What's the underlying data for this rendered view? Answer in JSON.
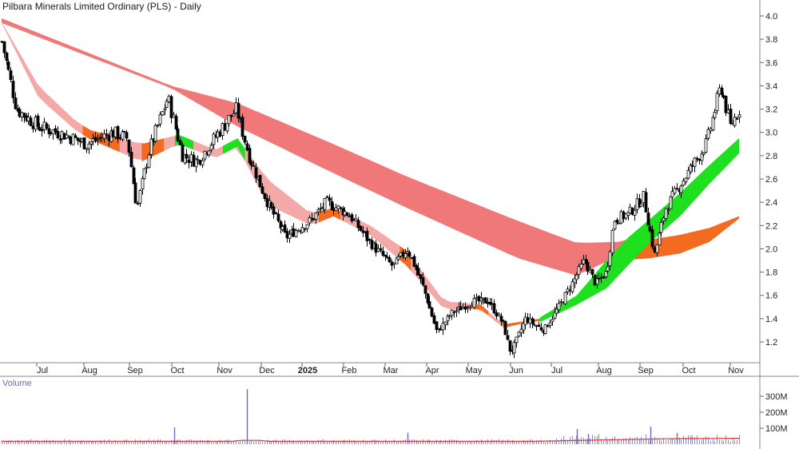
{
  "chart_data": {
    "type": "candlestick",
    "title": "Pilbara Minerals Limited Ordinary (PLS) - Daily",
    "price_axis": {
      "ticks": [
        "4.0",
        "3.8",
        "3.6",
        "3.4",
        "3.2",
        "3.0",
        "2.8",
        "2.6",
        "2.4",
        "2.2",
        "2.0",
        "1.8",
        "1.6",
        "1.4",
        "1.2"
      ],
      "range": [
        1.05,
        4.1
      ]
    },
    "time_axis": {
      "labels": [
        {
          "label": "Jul",
          "bold": false
        },
        {
          "label": "Aug",
          "bold": false
        },
        {
          "label": "Sep",
          "bold": false
        },
        {
          "label": "Oct",
          "bold": false
        },
        {
          "label": "Nov",
          "bold": false
        },
        {
          "label": "Dec",
          "bold": false
        },
        {
          "label": "2025",
          "bold": true
        },
        {
          "label": "Feb",
          "bold": false
        },
        {
          "label": "Mar",
          "bold": false
        },
        {
          "label": "Apr",
          "bold": false
        },
        {
          "label": "May",
          "bold": false
        },
        {
          "label": "Jun",
          "bold": false
        },
        {
          "label": "Jul",
          "bold": false
        },
        {
          "label": "Aug",
          "bold": false
        },
        {
          "label": "Sep",
          "bold": false
        },
        {
          "label": "Oct",
          "bold": false
        },
        {
          "label": "Nov",
          "bold": false
        }
      ]
    },
    "price_anchors": [
      {
        "t": 0.0,
        "p": 3.78
      },
      {
        "t": 0.02,
        "p": 3.2
      },
      {
        "t": 0.05,
        "p": 3.05
      },
      {
        "t": 0.085,
        "p": 2.98
      },
      {
        "t": 0.115,
        "p": 2.9
      },
      {
        "t": 0.15,
        "p": 3.0
      },
      {
        "t": 0.17,
        "p": 2.95
      },
      {
        "t": 0.183,
        "p": 2.35
      },
      {
        "t": 0.2,
        "p": 2.85
      },
      {
        "t": 0.225,
        "p": 3.3
      },
      {
        "t": 0.245,
        "p": 2.8
      },
      {
        "t": 0.265,
        "p": 2.75
      },
      {
        "t": 0.3,
        "p": 3.05
      },
      {
        "t": 0.318,
        "p": 3.2
      },
      {
        "t": 0.335,
        "p": 2.8
      },
      {
        "t": 0.36,
        "p": 2.4
      },
      {
        "t": 0.385,
        "p": 2.1
      },
      {
        "t": 0.42,
        "p": 2.25
      },
      {
        "t": 0.44,
        "p": 2.4
      },
      {
        "t": 0.47,
        "p": 2.3
      },
      {
        "t": 0.5,
        "p": 2.05
      },
      {
        "t": 0.53,
        "p": 1.85
      },
      {
        "t": 0.55,
        "p": 2.0
      },
      {
        "t": 0.57,
        "p": 1.7
      },
      {
        "t": 0.59,
        "p": 1.28
      },
      {
        "t": 0.61,
        "p": 1.45
      },
      {
        "t": 0.64,
        "p": 1.55
      },
      {
        "t": 0.66,
        "p": 1.55
      },
      {
        "t": 0.68,
        "p": 1.35
      },
      {
        "t": 0.69,
        "p": 1.1
      },
      {
        "t": 0.71,
        "p": 1.4
      },
      {
        "t": 0.735,
        "p": 1.3
      },
      {
        "t": 0.76,
        "p": 1.55
      },
      {
        "t": 0.79,
        "p": 1.9
      },
      {
        "t": 0.805,
        "p": 1.7
      },
      {
        "t": 0.82,
        "p": 1.8
      },
      {
        "t": 0.83,
        "p": 2.25
      },
      {
        "t": 0.85,
        "p": 2.3
      },
      {
        "t": 0.87,
        "p": 2.45
      },
      {
        "t": 0.885,
        "p": 1.95
      },
      {
        "t": 0.9,
        "p": 2.35
      },
      {
        "t": 0.925,
        "p": 2.6
      },
      {
        "t": 0.955,
        "p": 2.9
      },
      {
        "t": 0.975,
        "p": 3.4
      },
      {
        "t": 0.988,
        "p": 3.05
      },
      {
        "t": 1.0,
        "p": 3.2
      }
    ],
    "bands": [
      {
        "name": "",
        "color": "#f07878",
        "upper": [
          [
            0,
            3.98
          ],
          [
            0.23,
            3.4
          ],
          [
            0.32,
            3.25
          ],
          [
            0.45,
            2.9
          ],
          [
            0.55,
            2.62
          ],
          [
            0.7,
            2.24
          ],
          [
            0.78,
            2.05
          ],
          [
            0.84,
            2.06
          ],
          [
            0.88,
            2.15
          ]
        ],
        "lower": [
          [
            0,
            3.94
          ],
          [
            0.23,
            3.38
          ],
          [
            0.32,
            3.05
          ],
          [
            0.45,
            2.65
          ],
          [
            0.55,
            2.35
          ],
          [
            0.7,
            1.92
          ],
          [
            0.78,
            1.77
          ],
          [
            0.84,
            1.95
          ],
          [
            0.88,
            2.08
          ]
        ]
      },
      {
        "name": "",
        "color": "#f4a9a9",
        "upper": [
          [
            0,
            3.95
          ],
          [
            0.05,
            3.4
          ],
          [
            0.1,
            3.1
          ],
          [
            0.12,
            3.02
          ],
          [
            0.19,
            2.9
          ],
          [
            0.24,
            2.98
          ],
          [
            0.29,
            2.85
          ],
          [
            0.32,
            2.95
          ],
          [
            0.36,
            2.6
          ],
          [
            0.42,
            2.3
          ],
          [
            0.45,
            2.35
          ],
          [
            0.5,
            2.2
          ],
          [
            0.55,
            1.98
          ],
          [
            0.6,
            1.55
          ],
          [
            0.65,
            1.52
          ],
          [
            0.68,
            1.35
          ],
          [
            0.7,
            1.37
          ],
          [
            0.73,
            1.4
          ]
        ],
        "lower": [
          [
            0,
            3.94
          ],
          [
            0.05,
            3.3
          ],
          [
            0.1,
            3.02
          ],
          [
            0.12,
            2.94
          ],
          [
            0.19,
            2.75
          ],
          [
            0.24,
            2.9
          ],
          [
            0.29,
            2.78
          ],
          [
            0.32,
            2.88
          ],
          [
            0.36,
            2.38
          ],
          [
            0.42,
            2.2
          ],
          [
            0.45,
            2.28
          ],
          [
            0.5,
            2.12
          ],
          [
            0.55,
            1.85
          ],
          [
            0.6,
            1.48
          ],
          [
            0.65,
            1.48
          ],
          [
            0.68,
            1.32
          ],
          [
            0.7,
            1.35
          ],
          [
            0.73,
            1.38
          ]
        ]
      }
    ],
    "ribbons_green": [
      {
        "name": "",
        "upper": [
          [
            0.73,
            1.41
          ],
          [
            0.78,
            1.6
          ],
          [
            0.82,
            1.9
          ],
          [
            0.85,
            2.1
          ],
          [
            0.88,
            2.26
          ],
          [
            0.92,
            2.48
          ],
          [
            0.96,
            2.72
          ],
          [
            1.0,
            2.95
          ]
        ],
        "lower": [
          [
            0.73,
            1.37
          ],
          [
            0.78,
            1.52
          ],
          [
            0.82,
            1.66
          ],
          [
            0.85,
            1.86
          ],
          [
            0.88,
            2.06
          ],
          [
            0.92,
            2.28
          ],
          [
            0.96,
            2.56
          ],
          [
            1.0,
            2.82
          ]
        ]
      }
    ],
    "ribbons_orange": [
      {
        "name": "",
        "upper": [
          [
            0.84,
            2.05
          ],
          [
            0.88,
            2.08
          ],
          [
            0.92,
            2.12
          ],
          [
            0.96,
            2.18
          ],
          [
            1.0,
            2.28
          ]
        ],
        "lower": [
          [
            0.84,
            1.9
          ],
          [
            0.88,
            1.92
          ],
          [
            0.92,
            1.96
          ],
          [
            0.96,
            2.06
          ],
          [
            1.0,
            2.26
          ]
        ]
      }
    ],
    "volume": {
      "label": "Volume",
      "ticks": [
        "300M",
        "200M",
        "100M"
      ],
      "range_millions": [
        0,
        380
      ],
      "spikes": [
        {
          "t": 0.234,
          "v": 105
        },
        {
          "t": 0.333,
          "v": 345
        },
        {
          "t": 0.55,
          "v": 72
        },
        {
          "t": 0.78,
          "v": 95
        },
        {
          "t": 0.795,
          "v": 65
        },
        {
          "t": 0.88,
          "v": 110
        },
        {
          "t": 0.915,
          "v": 70
        }
      ],
      "average_line_color": "#d63a3a"
    }
  }
}
